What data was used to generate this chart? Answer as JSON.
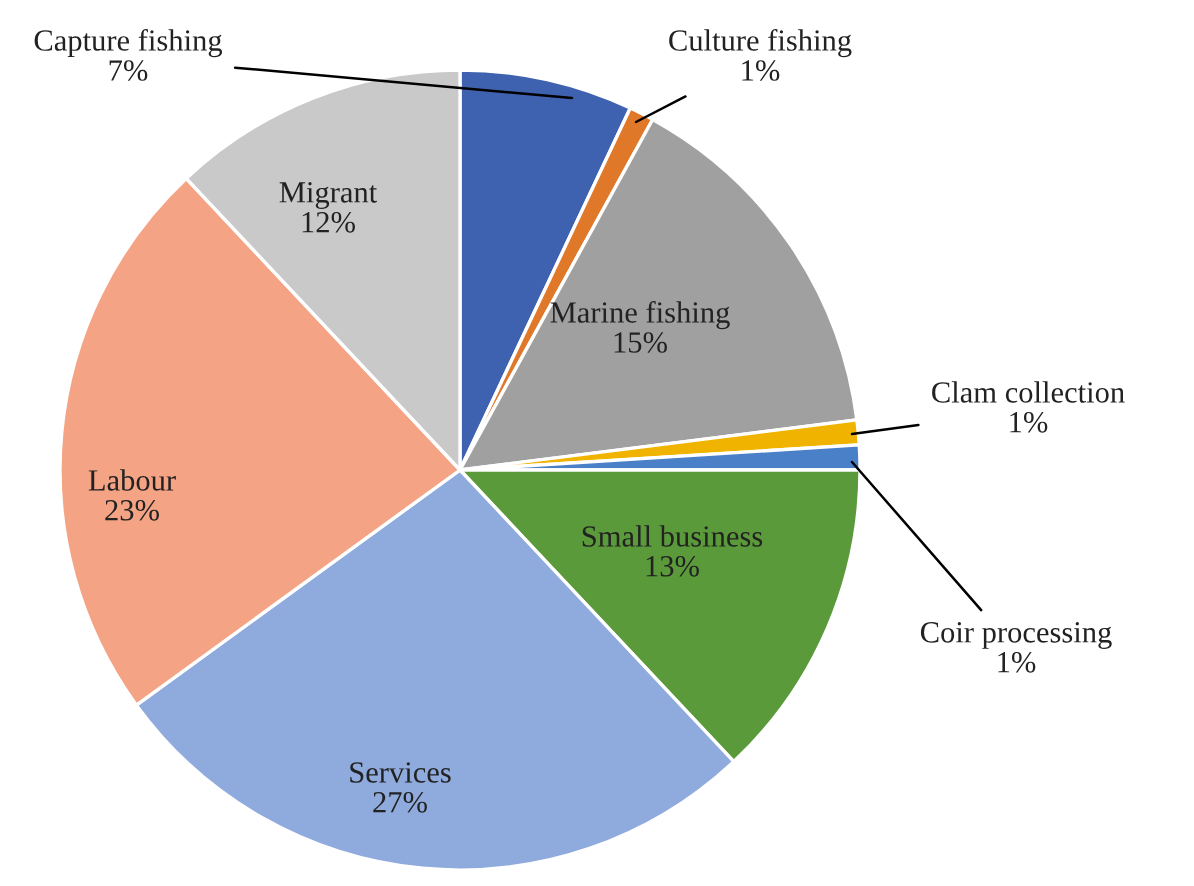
{
  "chart_data": {
    "type": "pie",
    "categories": [
      "Capture fishing",
      "Culture fishing",
      "Marine fishing",
      "Clam collection",
      "Coir processing",
      "Small business",
      "Services",
      "Labour",
      "Migrant"
    ],
    "values": [
      7,
      1,
      15,
      1,
      1,
      13,
      27,
      23,
      12
    ],
    "value_labels": [
      "7%",
      "1%",
      "15%",
      "1%",
      "1%",
      "13%",
      "27%",
      "23%",
      "12%"
    ],
    "colors": [
      "#3f62b0",
      "#e0782a",
      "#a0a0a0",
      "#f0b400",
      "#4a80c8",
      "#5a9a3a",
      "#8faadc",
      "#f4a384",
      "#c9c9c9"
    ],
    "legend": false
  }
}
